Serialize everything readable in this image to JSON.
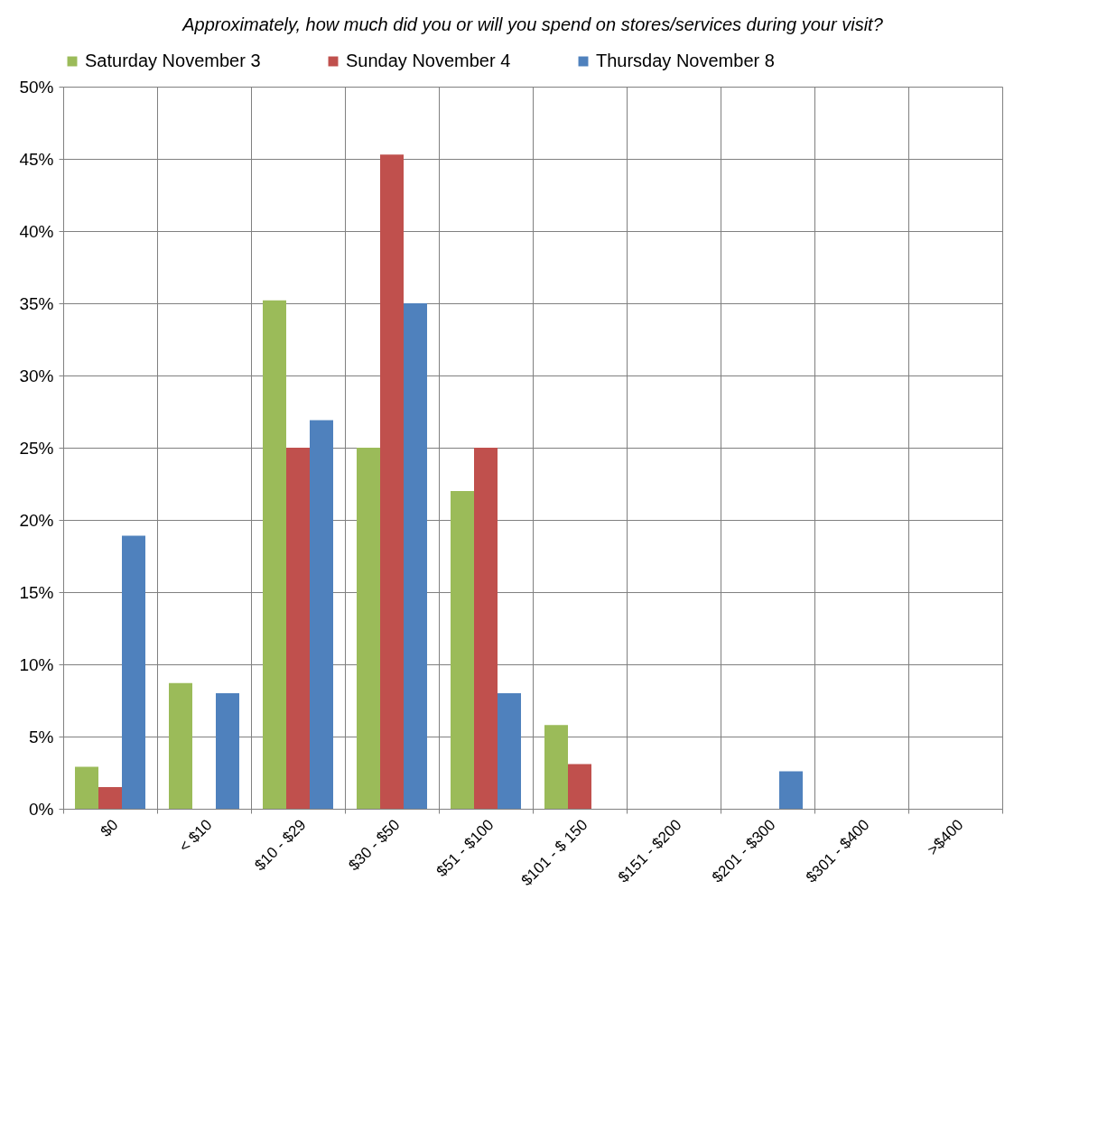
{
  "chart_data": {
    "type": "bar",
    "title": "Approximately, how much did you or will you spend on stores/services during your visit?",
    "categories": [
      "$0",
      "< $10",
      "$10 - $29",
      "$30 - $50",
      "$51 - $100",
      "$101 - $ 150",
      "$151 - $200",
      "$201 - $300",
      "$301 - $400",
      ">$400"
    ],
    "series": [
      {
        "name": "Saturday November 3",
        "color": "#9bbb59",
        "values": [
          2.9,
          8.7,
          35.2,
          25,
          22,
          5.8,
          0,
          0,
          0,
          0
        ]
      },
      {
        "name": "Sunday November 4",
        "color": "#c0504d",
        "values": [
          1.5,
          0,
          25,
          45.3,
          25,
          3.1,
          0,
          0,
          0,
          0
        ]
      },
      {
        "name": "Thursday November 8",
        "color": "#4f81bd",
        "values": [
          18.9,
          8,
          26.9,
          35,
          8,
          0,
          0,
          2.6,
          0,
          0
        ]
      }
    ],
    "ylim": [
      0,
      50
    ],
    "yticks": [
      {
        "value": 0,
        "label": "0%"
      },
      {
        "value": 5,
        "label": "5%"
      },
      {
        "value": 10,
        "label": "10%"
      },
      {
        "value": 15,
        "label": "15%"
      },
      {
        "value": 20,
        "label": "20%"
      },
      {
        "value": 25,
        "label": "25%"
      },
      {
        "value": 30,
        "label": "30%"
      },
      {
        "value": 35,
        "label": "35%"
      },
      {
        "value": 40,
        "label": "40%"
      },
      {
        "value": 45,
        "label": "45%"
      },
      {
        "value": 50,
        "label": "50%"
      }
    ],
    "grid": true,
    "legend": "top"
  }
}
